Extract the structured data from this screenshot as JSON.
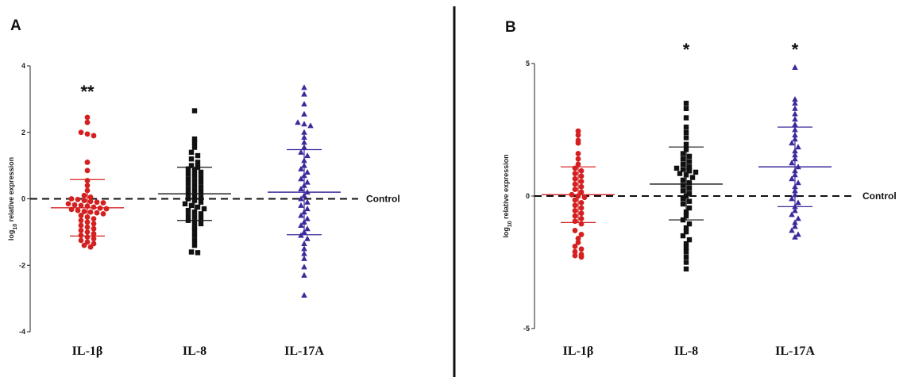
{
  "colors": {
    "il1b": "#d42020",
    "il8": "#111111",
    "il17a": "#3a2a9c",
    "axis": "#222222"
  },
  "marker_shapes": {
    "il1b": "circle",
    "il8": "square",
    "il17a": "triangle"
  },
  "chart_data": [
    {
      "type": "scatter",
      "panel_label": "A",
      "ylabel": "log10 relative expression",
      "ylabel_main": "log",
      "ylabel_sub": "10",
      "ylabel_rest": " relative expression",
      "ylim": [
        -4,
        4
      ],
      "yticks": [
        -4,
        -2,
        0,
        2,
        4
      ],
      "ytick_labels": [
        "-4",
        "-2",
        "0",
        "2",
        "4"
      ],
      "grid": false,
      "reference_line": {
        "y": 0,
        "label": "Control",
        "style": "dashed"
      },
      "categories": [
        "IL-1β",
        "IL-8",
        "IL-17A"
      ],
      "series": [
        {
          "category": "IL-1β",
          "marker": "circle",
          "color_key": "il1b",
          "significance": "**",
          "mean": -0.27,
          "sd_upper": 0.58,
          "sd_lower": -1.12,
          "values": [
            2.45,
            2.3,
            2.0,
            1.95,
            1.9,
            1.1,
            0.85,
            0.55,
            0.4,
            0.25,
            0.1,
            0.05,
            0.0,
            -0.02,
            -0.05,
            -0.08,
            -0.1,
            -0.12,
            -0.15,
            -0.18,
            -0.2,
            -0.22,
            -0.25,
            -0.28,
            -0.3,
            -0.32,
            -0.35,
            -0.38,
            -0.4,
            -0.42,
            -0.45,
            -0.5,
            -0.55,
            -0.6,
            -0.65,
            -0.7,
            -0.75,
            -0.8,
            -0.85,
            -0.9,
            -0.95,
            -1.0,
            -1.05,
            -1.1,
            -1.15,
            -1.2,
            -1.25,
            -1.3,
            -1.35,
            -1.4,
            -1.45
          ]
        },
        {
          "category": "IL-8",
          "marker": "square",
          "color_key": "il8",
          "significance": "",
          "mean": 0.15,
          "sd_upper": 0.95,
          "sd_lower": -0.65,
          "values": [
            2.65,
            1.8,
            1.7,
            1.55,
            1.4,
            1.3,
            1.2,
            1.1,
            1.0,
            0.95,
            0.9,
            0.85,
            0.8,
            0.75,
            0.7,
            0.65,
            0.6,
            0.55,
            0.5,
            0.45,
            0.4,
            0.35,
            0.3,
            0.25,
            0.2,
            0.15,
            0.1,
            0.05,
            0.0,
            -0.05,
            -0.1,
            -0.15,
            -0.2,
            -0.25,
            -0.3,
            -0.35,
            -0.4,
            -0.45,
            -0.5,
            -0.55,
            -0.6,
            -0.65,
            -0.7,
            -0.75,
            -0.85,
            -0.95,
            -1.1,
            -1.25,
            -1.4,
            -1.6,
            -1.62
          ]
        },
        {
          "category": "IL-17A",
          "marker": "triangle",
          "color_key": "il17a",
          "significance": "",
          "mean": 0.2,
          "sd_upper": 1.48,
          "sd_lower": -1.08,
          "values": [
            3.35,
            3.15,
            2.85,
            2.55,
            2.3,
            2.25,
            2.2,
            2.0,
            1.85,
            1.7,
            1.55,
            1.4,
            1.3,
            1.15,
            1.0,
            0.9,
            0.8,
            0.7,
            0.6,
            0.5,
            0.4,
            0.3,
            0.2,
            0.1,
            0.0,
            -0.1,
            -0.2,
            -0.3,
            -0.4,
            -0.5,
            -0.6,
            -0.7,
            -0.8,
            -0.9,
            -1.0,
            -1.1,
            -1.2,
            -1.35,
            -1.5,
            -1.65,
            -1.8,
            -2.05,
            -2.3,
            -2.9
          ]
        }
      ]
    },
    {
      "type": "scatter",
      "panel_label": "B",
      "ylabel": "log10 relative expression",
      "ylabel_main": "log",
      "ylabel_sub": "10",
      "ylabel_rest": " relative expression",
      "ylim": [
        -5,
        5
      ],
      "yticks": [
        -5,
        0,
        5
      ],
      "ytick_labels": [
        "-5",
        "0",
        "5"
      ],
      "grid": false,
      "reference_line": {
        "y": 0,
        "label": "Control",
        "style": "dashed"
      },
      "categories": [
        "IL-1β",
        "IL-8",
        "IL-17A"
      ],
      "series": [
        {
          "category": "IL-1β",
          "marker": "circle",
          "color_key": "il1b",
          "significance": "",
          "mean": 0.05,
          "sd_upper": 1.1,
          "sd_lower": -1.0,
          "values": [
            2.45,
            2.3,
            2.1,
            2.0,
            1.6,
            1.4,
            1.2,
            1.05,
            0.95,
            0.85,
            0.75,
            0.65,
            0.55,
            0.45,
            0.35,
            0.25,
            0.15,
            0.05,
            0.0,
            -0.05,
            -0.15,
            -0.25,
            -0.35,
            -0.45,
            -0.55,
            -0.65,
            -0.75,
            -0.85,
            -0.95,
            -1.05,
            -1.3,
            -1.45,
            -1.6,
            -1.75,
            -1.9,
            -2.0,
            -2.1,
            -2.2,
            -2.25,
            -2.3
          ]
        },
        {
          "category": "IL-8",
          "marker": "square",
          "color_key": "il8",
          "significance": "*",
          "mean": 0.45,
          "sd_upper": 1.85,
          "sd_lower": -0.9,
          "values": [
            3.5,
            3.3,
            2.95,
            2.6,
            2.4,
            2.2,
            1.95,
            1.75,
            1.6,
            1.5,
            1.4,
            1.3,
            1.2,
            1.1,
            1.05,
            1.0,
            0.95,
            0.9,
            0.85,
            0.8,
            0.7,
            0.6,
            0.5,
            0.4,
            0.3,
            0.2,
            0.1,
            0.0,
            -0.1,
            -0.2,
            -0.3,
            -0.45,
            -0.6,
            -0.75,
            -0.9,
            -1.05,
            -1.2,
            -1.35,
            -1.5,
            -1.65,
            -1.8,
            -1.95,
            -2.1,
            -2.3,
            -2.5,
            -2.75
          ]
        },
        {
          "category": "IL-17A",
          "marker": "triangle",
          "color_key": "il17a",
          "significance": "*",
          "mean": 1.1,
          "sd_upper": 2.6,
          "sd_lower": -0.4,
          "values": [
            4.85,
            3.65,
            3.5,
            3.3,
            3.1,
            2.9,
            2.7,
            2.5,
            2.3,
            2.15,
            2.0,
            1.85,
            1.7,
            1.55,
            1.4,
            1.25,
            1.1,
            0.95,
            0.8,
            0.65,
            0.5,
            0.35,
            0.2,
            0.05,
            -0.1,
            -0.25,
            -0.4,
            -0.55,
            -0.7,
            -0.85,
            -1.0,
            -1.15,
            -1.3,
            -1.45,
            -1.55
          ]
        }
      ]
    }
  ]
}
